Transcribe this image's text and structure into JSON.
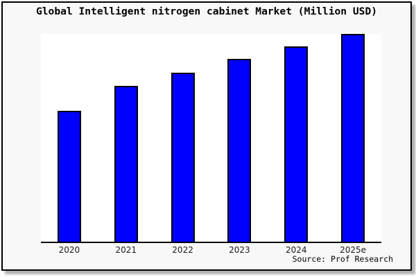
{
  "header": {
    "title": "Global Intelligent nitrogen cabinet Market (Million USD)"
  },
  "footer": {
    "source": "Source: Prof Research"
  },
  "colors": {
    "bar_fill": "#0000ff",
    "bar_border": "#000000",
    "background": "#f8f8f8",
    "plot_background": "#ffffff",
    "axis": "#000000",
    "frame_border": "#000000",
    "shadow": "#b0b0b0"
  },
  "chart_data": {
    "type": "bar",
    "title": "Global Intelligent nitrogen cabinet Market (Million USD)",
    "categories": [
      "2020",
      "2021",
      "2022",
      "2023",
      "2024",
      "2025e"
    ],
    "values": [
      63,
      75,
      81.5,
      88,
      94,
      100
    ],
    "value_note": "relative bar heights as % of tallest bar; chart shows no numeric y-axis labels",
    "xlabel": "",
    "ylabel": "",
    "ylim": [
      0,
      100
    ],
    "grid": false,
    "legend": false,
    "y_axis_ticks_visible": false,
    "source": "Source: Prof Research"
  }
}
